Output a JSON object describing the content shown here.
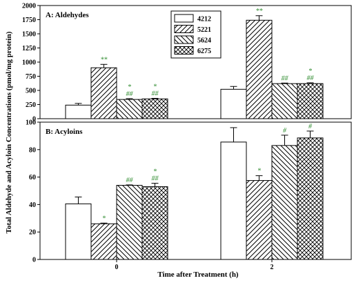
{
  "colors": {
    "sig": "#2e8b2e",
    "axis": "#000000",
    "bar_stroke": "#000000"
  },
  "chart_data": {
    "type": "bar",
    "ylabel": "Total Aldehyde and Acyloin Concentrations (pmol/mg protein)",
    "xlabel": "Time after Treatment (h)",
    "categories": [
      "0",
      "2"
    ],
    "legend": {
      "placement": "top-center",
      "entries": [
        {
          "name": "4212",
          "pattern": "white"
        },
        {
          "name": "5221",
          "pattern": "diag-right"
        },
        {
          "name": "5624",
          "pattern": "diag-left"
        },
        {
          "name": "6275",
          "pattern": "crosshatch"
        }
      ]
    },
    "panels": [
      {
        "title": "A: Aldehydes",
        "ylim": [
          0,
          2000
        ],
        "yticks": [
          "0",
          "250",
          "500",
          "750",
          "1000",
          "1250",
          "1500",
          "1750",
          "2000"
        ],
        "series": [
          {
            "name": "4212",
            "values": [
              240,
              520
            ],
            "errors": [
              30,
              50
            ],
            "sig": [
              "",
              ""
            ]
          },
          {
            "name": "5221",
            "values": [
              900,
              1740
            ],
            "errors": [
              60,
              80
            ],
            "sig": [
              "**",
              "**"
            ]
          },
          {
            "name": "5624",
            "values": [
              340,
              620
            ],
            "errors": [
              15,
              10
            ],
            "sig": [
              "*\n##",
              "##"
            ]
          },
          {
            "name": "6275",
            "values": [
              350,
              620
            ],
            "errors": [
              10,
              15
            ],
            "sig": [
              "*\n##",
              "*\n##"
            ]
          }
        ]
      },
      {
        "title": "B: Acyloins",
        "ylim": [
          0,
          100
        ],
        "yticks": [
          "0",
          "20",
          "40",
          "60",
          "80",
          "100"
        ],
        "series": [
          {
            "name": "4212",
            "values": [
              40.5,
              85.5
            ],
            "errors": [
              5,
              10.5
            ],
            "sig": [
              "",
              ""
            ]
          },
          {
            "name": "5221",
            "values": [
              26,
              57.5
            ],
            "errors": [
              0.5,
              3.5
            ],
            "sig": [
              "*",
              "*"
            ]
          },
          {
            "name": "5624",
            "values": [
              54,
              83
            ],
            "errors": [
              0.3,
              7.5
            ],
            "sig": [
              "##",
              "#"
            ]
          },
          {
            "name": "6275",
            "values": [
              53,
              88.5
            ],
            "errors": [
              2.5,
              5
            ],
            "sig": [
              "*\n##",
              "#"
            ]
          }
        ]
      }
    ]
  }
}
